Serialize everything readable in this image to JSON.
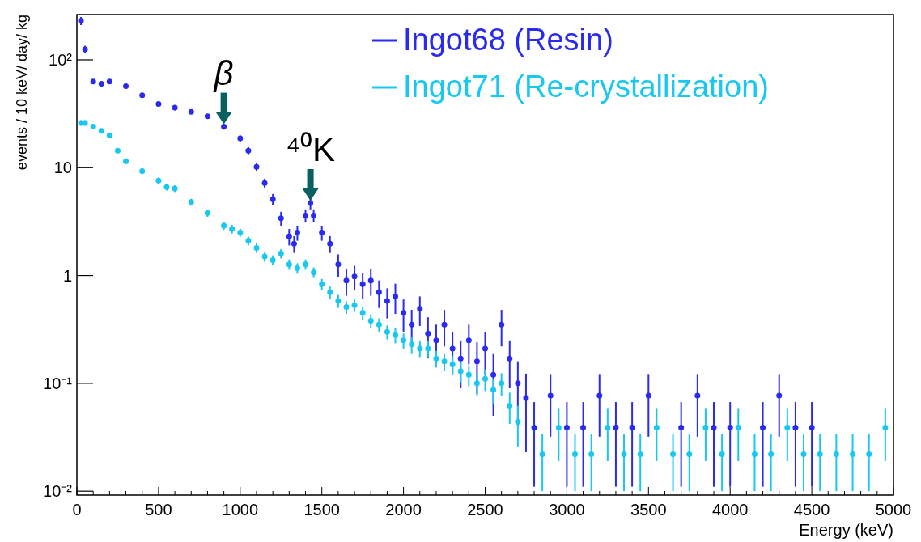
{
  "chart_data": {
    "type": "scatter",
    "xlabel": "Energy (keV)",
    "ylabel": "events / 10 keV/ day/ kg",
    "log": "y",
    "xlim": [
      0,
      5000
    ],
    "xticks": [
      0,
      500,
      1000,
      1500,
      2000,
      2500,
      3000,
      3500,
      4000,
      4500,
      5000
    ],
    "ylim": [
      0.0092,
      263
    ],
    "yticks": [
      {
        "value": 0.01,
        "label": "10⁻²"
      },
      {
        "value": 0.1,
        "label": "10⁻¹"
      },
      1,
      10,
      {
        "value": 100,
        "label": "10²"
      }
    ],
    "grid": false,
    "legend": "top right",
    "marker": "circle",
    "annotations": [
      {
        "text": "β",
        "x": 900,
        "y": 24
      },
      {
        "text": "⁴⁰K",
        "x": 1430,
        "y": 4.7
      }
    ],
    "series": [
      {
        "name": "Ingot68 (Resin)",
        "color": "#2a2af0",
        "x": [
          25,
          50,
          100,
          150,
          200,
          300,
          400,
          500,
          600,
          700,
          800,
          900,
          1000,
          1050,
          1100,
          1150,
          1200,
          1250,
          1300,
          1330,
          1350,
          1400,
          1430,
          1450,
          1500,
          1550,
          1600,
          1650,
          1700,
          1750,
          1800,
          1850,
          1900,
          1950,
          2000,
          2050,
          2100,
          2150,
          2200,
          2250,
          2300,
          2350,
          2400,
          2450,
          2500,
          2550,
          2600,
          2650,
          2700,
          2750,
          2800,
          2900,
          3000,
          3100,
          3200,
          3300,
          3400,
          3500,
          3700,
          3800,
          3900,
          4000,
          4200,
          4300,
          4400,
          4500
        ],
        "values": [
          230,
          125,
          63,
          60,
          63,
          57,
          47,
          39,
          36,
          33,
          30,
          24,
          18.7,
          14.4,
          10.2,
          7.2,
          5.1,
          3.4,
          2.3,
          1.97,
          2.5,
          3.6,
          4.7,
          3.6,
          2.5,
          1.97,
          1.27,
          0.9,
          0.98,
          0.83,
          0.9,
          0.7,
          0.58,
          0.64,
          0.45,
          0.35,
          0.49,
          0.29,
          0.25,
          0.35,
          0.21,
          0.17,
          0.25,
          0.16,
          0.21,
          0.12,
          0.35,
          0.17,
          0.1,
          0.073,
          0.039,
          0.077,
          0.039,
          0.039,
          0.077,
          0.039,
          0.039,
          0.077,
          0.039,
          0.077,
          0.039,
          0.039,
          0.039,
          0.077,
          0.039,
          0.039
        ],
        "errors": [
          20,
          10,
          3,
          3,
          3,
          2,
          2,
          2,
          2,
          1.5,
          1.5,
          1.5,
          1.2,
          1.1,
          0.9,
          0.7,
          0.6,
          0.5,
          0.4,
          0.35,
          0.4,
          0.5,
          0.6,
          0.5,
          0.4,
          0.35,
          0.3,
          0.25,
          0.25,
          0.22,
          0.25,
          0.2,
          0.18,
          0.2,
          0.15,
          0.13,
          0.15,
          0.12,
          0.1,
          0.13,
          0.09,
          0.08,
          0.1,
          0.08,
          0.09,
          0.07,
          0.13,
          0.08,
          0.06,
          0.05,
          0.028,
          0.045,
          0.028,
          0.028,
          0.045,
          0.028,
          0.028,
          0.045,
          0.028,
          0.045,
          0.028,
          0.028,
          0.028,
          0.045,
          0.028,
          0.028
        ]
      },
      {
        "name": "Ingot71 (Re-crystallization)",
        "color": "#19c8f0",
        "x": [
          25,
          50,
          100,
          150,
          200,
          250,
          300,
          400,
          500,
          550,
          600,
          700,
          800,
          900,
          950,
          1000,
          1050,
          1100,
          1150,
          1200,
          1250,
          1300,
          1350,
          1400,
          1450,
          1500,
          1550,
          1600,
          1650,
          1700,
          1750,
          1800,
          1850,
          1900,
          1950,
          2000,
          2050,
          2100,
          2150,
          2200,
          2250,
          2300,
          2350,
          2400,
          2450,
          2500,
          2550,
          2600,
          2650,
          2700,
          2850,
          2950,
          3050,
          3150,
          3250,
          3350,
          3450,
          3550,
          3650,
          3750,
          3850,
          3950,
          4050,
          4150,
          4250,
          4350,
          4450,
          4550,
          4650,
          4750,
          4850,
          4950
        ],
        "values": [
          26,
          26,
          24,
          22,
          20,
          14.4,
          11.5,
          9.3,
          7.6,
          6.6,
          6.4,
          4.8,
          3.8,
          2.9,
          2.7,
          2.5,
          2.1,
          1.8,
          1.5,
          1.39,
          1.6,
          1.27,
          1.17,
          1.27,
          1.07,
          0.83,
          0.7,
          0.58,
          0.51,
          0.53,
          0.45,
          0.38,
          0.35,
          0.3,
          0.28,
          0.25,
          0.23,
          0.21,
          0.21,
          0.17,
          0.16,
          0.15,
          0.13,
          0.12,
          0.1,
          0.11,
          0.087,
          0.1,
          0.062,
          0.044,
          0.022,
          0.039,
          0.022,
          0.022,
          0.039,
          0.022,
          0.022,
          0.039,
          0.022,
          0.022,
          0.039,
          0.022,
          0.039,
          0.022,
          0.022,
          0.039,
          0.022,
          0.022,
          0.022,
          0.022,
          0.022,
          0.039
        ],
        "errors": [
          1.5,
          1.5,
          1.2,
          1.1,
          1,
          0.8,
          0.7,
          0.6,
          0.5,
          0.45,
          0.45,
          0.35,
          0.3,
          0.25,
          0.25,
          0.22,
          0.2,
          0.18,
          0.16,
          0.15,
          0.16,
          0.14,
          0.13,
          0.14,
          0.12,
          0.1,
          0.09,
          0.08,
          0.07,
          0.07,
          0.06,
          0.055,
          0.05,
          0.045,
          0.045,
          0.04,
          0.04,
          0.035,
          0.035,
          0.03,
          0.03,
          0.03,
          0.028,
          0.026,
          0.024,
          0.025,
          0.022,
          0.024,
          0.02,
          0.018,
          0.012,
          0.02,
          0.012,
          0.012,
          0.02,
          0.012,
          0.012,
          0.02,
          0.012,
          0.012,
          0.02,
          0.012,
          0.02,
          0.012,
          0.012,
          0.02,
          0.012,
          0.012,
          0.012,
          0.012,
          0.012,
          0.02
        ]
      }
    ]
  }
}
